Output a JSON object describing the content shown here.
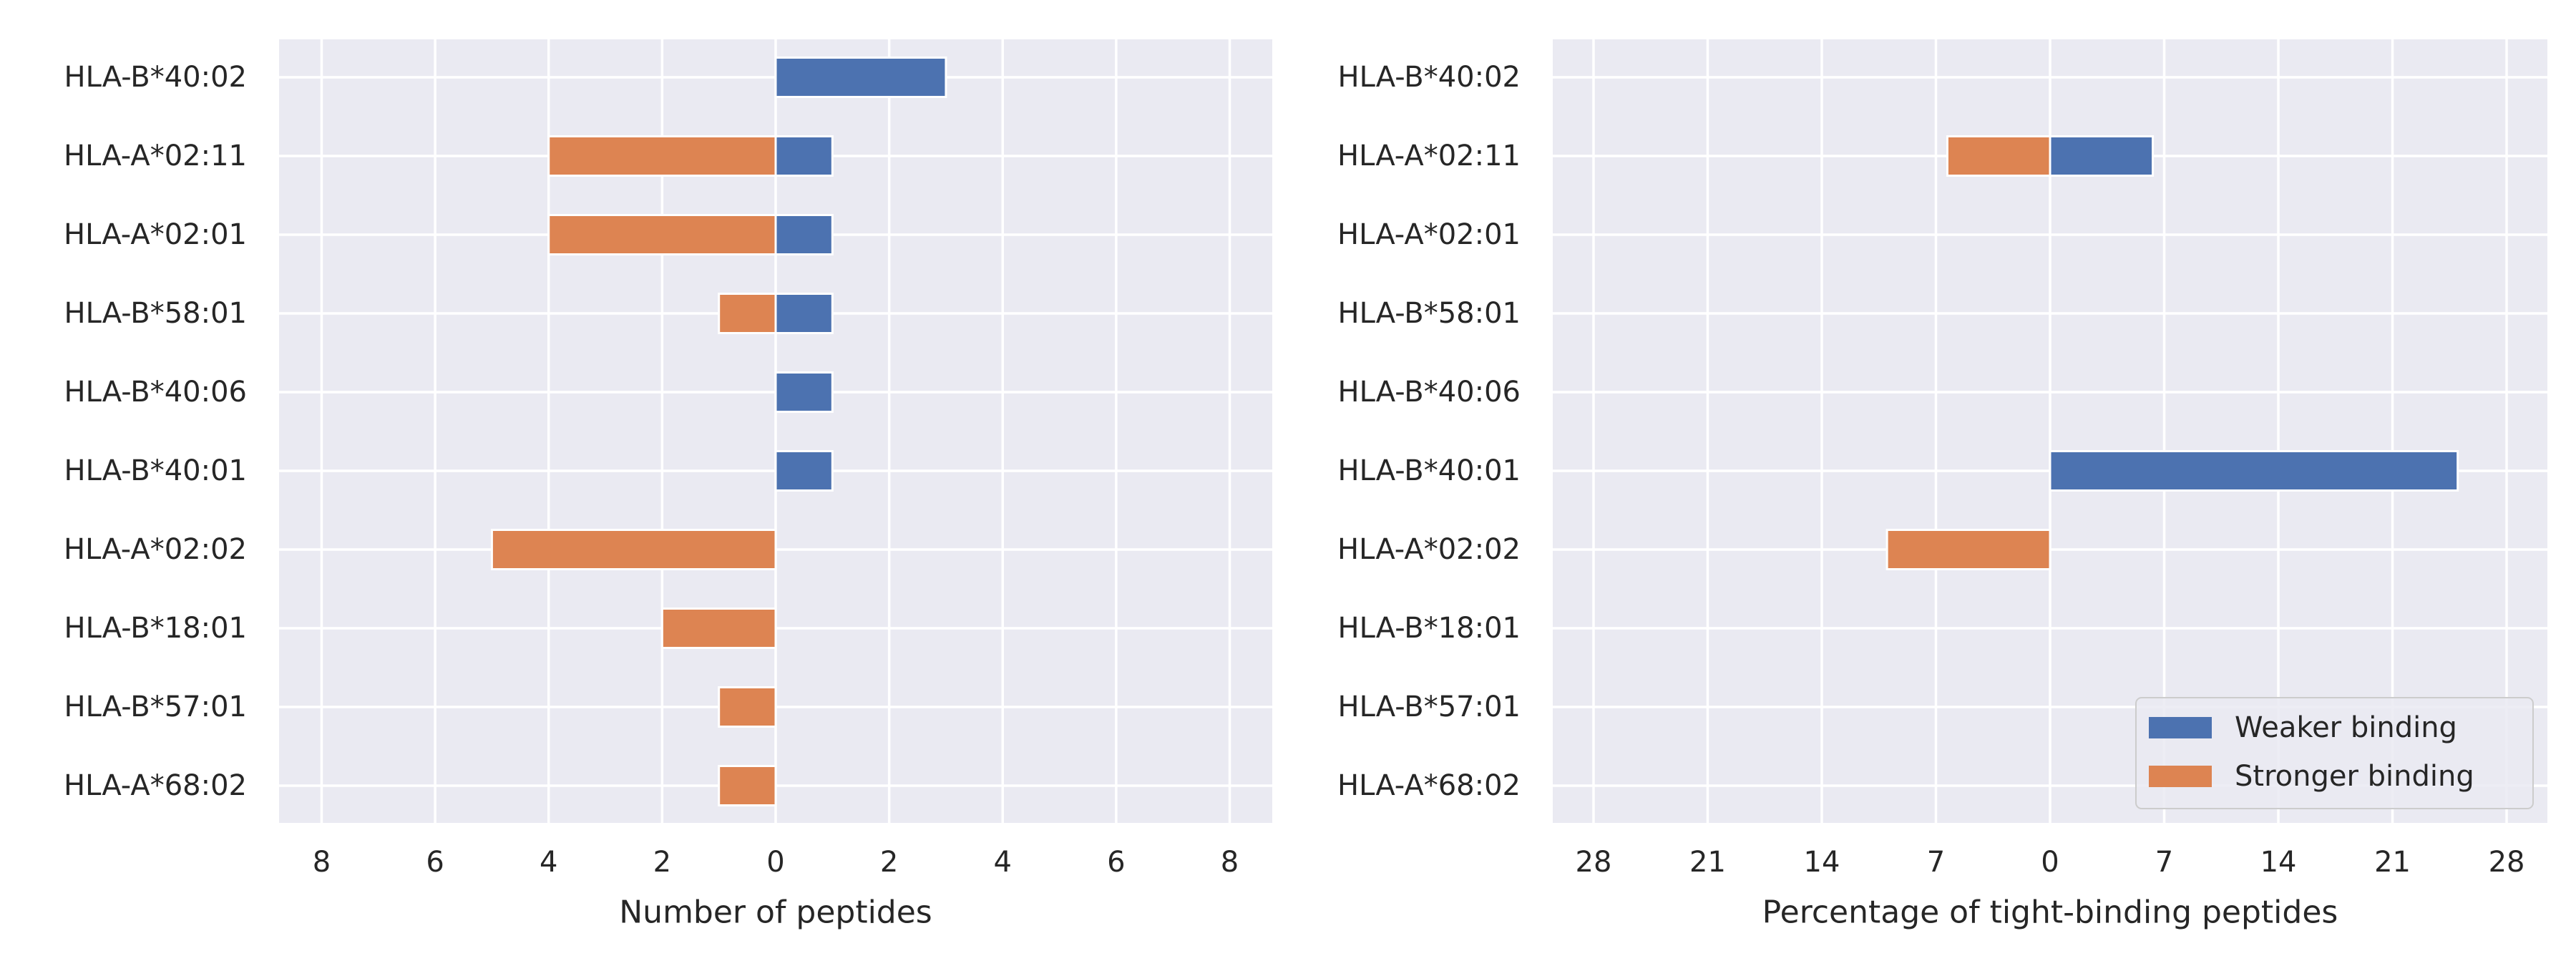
{
  "chart_data": [
    {
      "type": "bar",
      "orientation": "horizontal",
      "title": "",
      "xlabel": "Number of peptides",
      "ylabel": "",
      "xlim": [
        -8.75,
        8.75
      ],
      "xticks": [
        -8,
        -6,
        -4,
        -2,
        0,
        2,
        4,
        6,
        8
      ],
      "xtick_labels": [
        "8",
        "6",
        "4",
        "2",
        "0",
        "2",
        "4",
        "6",
        "8"
      ],
      "grid": true,
      "categories": [
        "HLA-B*40:02",
        "HLA-A*02:11",
        "HLA-A*02:01",
        "HLA-B*58:01",
        "HLA-B*40:06",
        "HLA-B*40:01",
        "HLA-A*02:02",
        "HLA-B*18:01",
        "HLA-B*57:01",
        "HLA-A*68:02"
      ],
      "series": [
        {
          "name": "Weaker binding",
          "color": "#4c72b0",
          "values": [
            3,
            1,
            1,
            1,
            1,
            1,
            0,
            0,
            0,
            0
          ]
        },
        {
          "name": "Stronger binding",
          "color": "#dd8452",
          "values": [
            0,
            -4,
            -4,
            -1,
            0,
            0,
            -5,
            -2,
            -1,
            -1
          ]
        }
      ]
    },
    {
      "type": "bar",
      "orientation": "horizontal",
      "title": "",
      "xlabel": "Percentage of tight-binding peptides",
      "ylabel": "",
      "xlim": [
        -30.5,
        30.5
      ],
      "xticks": [
        -28,
        -21,
        -14,
        -7,
        0,
        7,
        14,
        21,
        28
      ],
      "xtick_labels": [
        "28",
        "21",
        "14",
        "7",
        "0",
        "7",
        "14",
        "21",
        "28"
      ],
      "grid": true,
      "legend_position": "lower-right",
      "categories": [
        "HLA-B*40:02",
        "HLA-A*02:11",
        "HLA-A*02:01",
        "HLA-B*58:01",
        "HLA-B*40:06",
        "HLA-B*40:01",
        "HLA-A*02:02",
        "HLA-B*18:01",
        "HLA-B*57:01",
        "HLA-A*68:02"
      ],
      "series": [
        {
          "name": "Weaker binding",
          "color": "#4c72b0",
          "values": [
            0,
            6.3,
            0,
            0,
            0,
            25,
            0,
            0,
            0,
            0
          ]
        },
        {
          "name": "Stronger binding",
          "color": "#dd8452",
          "values": [
            0,
            -6.3,
            0,
            0,
            0,
            0,
            -10,
            0,
            0,
            0
          ]
        }
      ]
    }
  ],
  "style": {
    "plot_background": "#eaeaf2",
    "grid_color": "#ffffff"
  }
}
